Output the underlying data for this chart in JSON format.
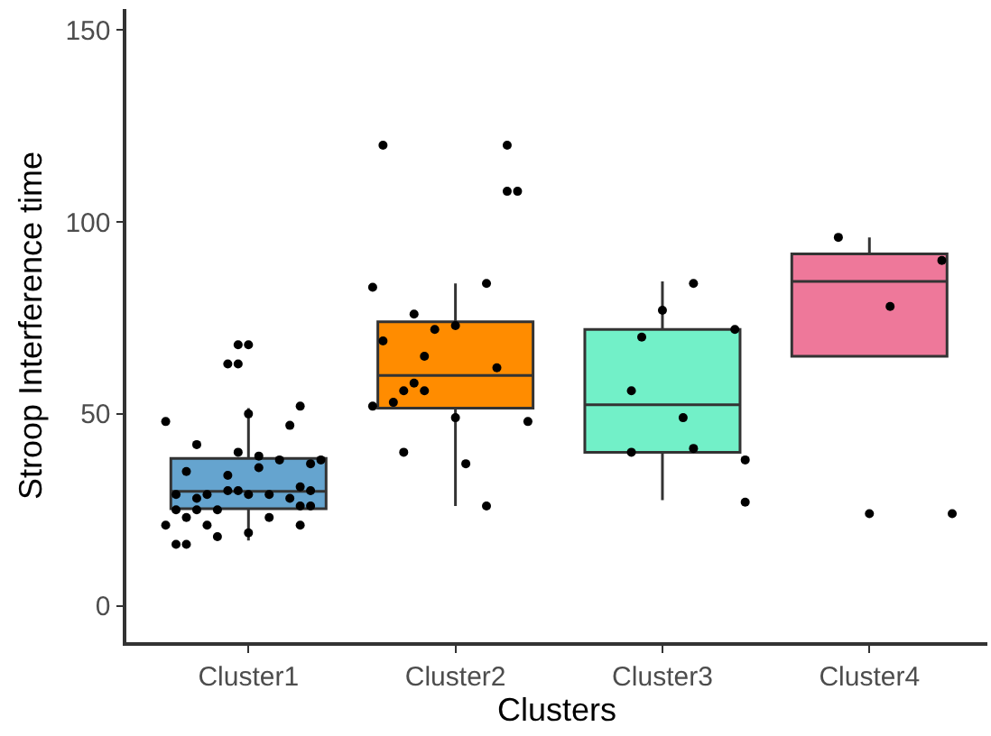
{
  "chart_data": {
    "type": "box",
    "xlabel": "Clusters",
    "ylabel": "Stroop Interference time",
    "categories": [
      "Cluster1",
      "Cluster2",
      "Cluster3",
      "Cluster4"
    ],
    "colors": [
      "#65a4cf",
      "#ff8c00",
      "#72f0c8",
      "#ee789a"
    ],
    "boxes": [
      {
        "low": 17,
        "q1": 25.3,
        "median": 29.8,
        "q3": 38.4,
        "high": 51.5
      },
      {
        "low": 26,
        "q1": 51.5,
        "median": 60,
        "q3": 74,
        "high": 84
      },
      {
        "low": 27.5,
        "q1": 40,
        "median": 52.4,
        "q3": 72,
        "high": 84.5
      },
      {
        "low": 65,
        "q1": 65,
        "median": 84.5,
        "q3": 91.7,
        "high": 96
      }
    ],
    "series": [
      {
        "type": "scatter",
        "color": "#000000",
        "x": [
          "Cluster1",
          "Cluster1",
          "Cluster2",
          "Cluster2"
        ],
        "values": [
          48,
          21,
          83,
          52
        ]
      },
      {
        "type": "scatter",
        "color": "#000000",
        "x": [
          "Cluster1",
          "Cluster1",
          "Cluster1",
          "Cluster2",
          "Cluster2"
        ],
        "values": [
          29,
          25,
          16,
          120,
          69
        ]
      },
      {
        "type": "scatter",
        "color": "#000000",
        "x": [
          "Cluster1",
          "Cluster1",
          "Cluster1",
          "Cluster2"
        ],
        "values": [
          35,
          23,
          16,
          53
        ]
      },
      {
        "type": "scatter",
        "color": "#000000",
        "x": [
          "Cluster1",
          "Cluster1",
          "Cluster1",
          "Cluster2",
          "Cluster2"
        ],
        "values": [
          42,
          28,
          25,
          56,
          40
        ]
      },
      {
        "type": "scatter",
        "color": "#000000",
        "x": [
          "Cluster1",
          "Cluster1",
          "Cluster2",
          "Cluster2"
        ],
        "values": [
          29,
          21,
          76,
          58
        ]
      },
      {
        "type": "scatter",
        "color": "#000000",
        "x": [
          "Cluster1",
          "Cluster1",
          "Cluster2",
          "Cluster2",
          "Cluster3",
          "Cluster3",
          "Cluster4"
        ],
        "values": [
          25,
          18,
          65,
          56,
          56,
          40,
          96
        ]
      },
      {
        "type": "scatter",
        "color": "#000000",
        "x": [
          "Cluster1",
          "Cluster1",
          "Cluster1",
          "Cluster2",
          "Cluster3"
        ],
        "values": [
          63,
          34,
          30,
          72,
          70
        ]
      },
      {
        "type": "scatter",
        "color": "#000000",
        "x": [
          "Cluster1",
          "Cluster1",
          "Cluster1",
          "Cluster1"
        ],
        "values": [
          68,
          63,
          40,
          30
        ]
      },
      {
        "type": "scatter",
        "color": "#000000",
        "x": [
          "Cluster1",
          "Cluster1",
          "Cluster1",
          "Cluster1",
          "Cluster2",
          "Cluster2",
          "Cluster3",
          "Cluster4"
        ],
        "values": [
          68,
          50,
          29,
          19,
          73,
          49,
          77,
          24
        ]
      },
      {
        "type": "scatter",
        "color": "#000000",
        "x": [
          "Cluster1",
          "Cluster1",
          "Cluster2"
        ],
        "values": [
          39,
          36,
          37
        ]
      },
      {
        "type": "scatter",
        "color": "#000000",
        "x": [
          "Cluster1",
          "Cluster1",
          "Cluster3",
          "Cluster4"
        ],
        "values": [
          29,
          23,
          49,
          78
        ]
      },
      {
        "type": "scatter",
        "color": "#000000",
        "x": [
          "Cluster1",
          "Cluster2",
          "Cluster2",
          "Cluster3",
          "Cluster3"
        ],
        "values": [
          38,
          84,
          26,
          84,
          41
        ]
      },
      {
        "type": "scatter",
        "color": "#000000",
        "x": [
          "Cluster1",
          "Cluster1",
          "Cluster2"
        ],
        "values": [
          47,
          28,
          62
        ]
      },
      {
        "type": "scatter",
        "color": "#000000",
        "x": [
          "Cluster1",
          "Cluster1",
          "Cluster1",
          "Cluster1",
          "Cluster2",
          "Cluster2"
        ],
        "values": [
          52,
          31,
          26,
          21,
          120,
          108
        ]
      },
      {
        "type": "scatter",
        "color": "#000000",
        "x": [
          "Cluster1",
          "Cluster1",
          "Cluster1",
          "Cluster2"
        ],
        "values": [
          37,
          30,
          26,
          108
        ]
      },
      {
        "type": "scatter",
        "color": "#000000",
        "x": [
          "Cluster1",
          "Cluster2",
          "Cluster3",
          "Cluster4"
        ],
        "values": [
          38,
          48,
          72,
          90
        ]
      },
      {
        "type": "scatter",
        "color": "#000000",
        "x": [
          "Cluster3",
          "Cluster3",
          "Cluster4"
        ],
        "values": [
          38,
          27,
          24
        ]
      }
    ],
    "marker": "circle",
    "ylim": [
      -9.5,
      155.5
    ],
    "yticks": [
      0,
      50,
      100,
      150
    ],
    "grid": false,
    "legend": false
  }
}
